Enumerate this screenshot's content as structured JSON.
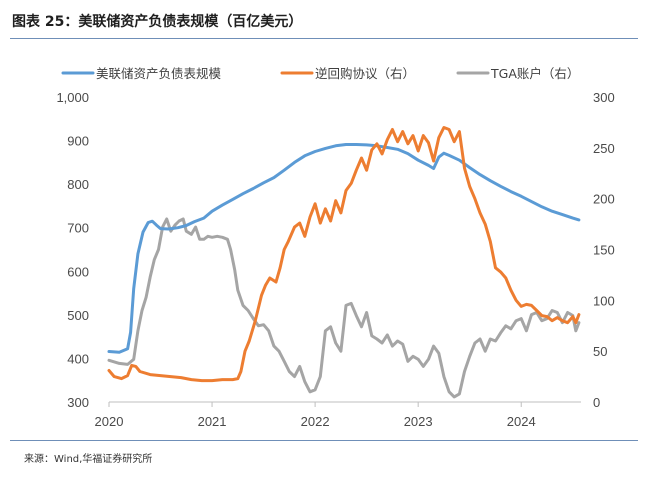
{
  "figure_title": "图表 25：美联储资产负债表规模（百亿美元）",
  "source": "来源：Wind,华福证券研究所",
  "colors": {
    "fed": "#5b9bd5",
    "rrp": "#ed7d31",
    "tga": "#a5a5a5",
    "axis": "#bfbfbf",
    "rule": "#6f8fb8"
  },
  "chart_data": {
    "type": "line",
    "title": "",
    "legend_position": "top",
    "grid": false,
    "x_axis": {
      "tick_labels": [
        "2020",
        "2021",
        "2022",
        "2023",
        "2024"
      ],
      "range": [
        2020.0,
        2024.58
      ]
    },
    "y_left": {
      "tick_labels": [
        "1,000",
        "900",
        "800",
        "700",
        "600",
        "500",
        "400",
        "300"
      ],
      "range": [
        300,
        1000
      ]
    },
    "y_right": {
      "tick_labels": [
        "300",
        "250",
        "200",
        "150",
        "100",
        "50",
        "0"
      ],
      "range": [
        0,
        300
      ]
    },
    "series": [
      {
        "name": "美联储资产负债表规模",
        "axis": "left",
        "points": [
          [
            2020.0,
            416
          ],
          [
            2020.1,
            414
          ],
          [
            2020.18,
            422
          ],
          [
            2020.21,
            460
          ],
          [
            2020.24,
            560
          ],
          [
            2020.28,
            640
          ],
          [
            2020.33,
            690
          ],
          [
            2020.38,
            712
          ],
          [
            2020.42,
            715
          ],
          [
            2020.46,
            706
          ],
          [
            2020.5,
            698
          ],
          [
            2020.58,
            697
          ],
          [
            2020.67,
            700
          ],
          [
            2020.75,
            705
          ],
          [
            2020.83,
            714
          ],
          [
            2020.92,
            722
          ],
          [
            2021.0,
            738
          ],
          [
            2021.1,
            752
          ],
          [
            2021.2,
            765
          ],
          [
            2021.3,
            778
          ],
          [
            2021.4,
            790
          ],
          [
            2021.5,
            803
          ],
          [
            2021.6,
            815
          ],
          [
            2021.7,
            832
          ],
          [
            2021.8,
            850
          ],
          [
            2021.9,
            865
          ],
          [
            2022.0,
            875
          ],
          [
            2022.1,
            882
          ],
          [
            2022.2,
            888
          ],
          [
            2022.3,
            891
          ],
          [
            2022.4,
            891
          ],
          [
            2022.5,
            890
          ],
          [
            2022.6,
            888
          ],
          [
            2022.7,
            884
          ],
          [
            2022.8,
            880
          ],
          [
            2022.9,
            870
          ],
          [
            2023.0,
            855
          ],
          [
            2023.1,
            843
          ],
          [
            2023.15,
            836
          ],
          [
            2023.2,
            862
          ],
          [
            2023.25,
            871
          ],
          [
            2023.3,
            866
          ],
          [
            2023.4,
            855
          ],
          [
            2023.5,
            838
          ],
          [
            2023.6,
            822
          ],
          [
            2023.7,
            808
          ],
          [
            2023.8,
            795
          ],
          [
            2023.9,
            783
          ],
          [
            2024.0,
            772
          ],
          [
            2024.1,
            760
          ],
          [
            2024.2,
            748
          ],
          [
            2024.3,
            738
          ],
          [
            2024.4,
            730
          ],
          [
            2024.5,
            722
          ],
          [
            2024.56,
            718
          ]
        ]
      },
      {
        "name": "逆回购协议（右）",
        "axis": "right",
        "points": [
          [
            2020.0,
            31
          ],
          [
            2020.05,
            25
          ],
          [
            2020.12,
            23
          ],
          [
            2020.18,
            26
          ],
          [
            2020.22,
            36
          ],
          [
            2020.26,
            35
          ],
          [
            2020.3,
            30
          ],
          [
            2020.4,
            27
          ],
          [
            2020.5,
            26
          ],
          [
            2020.6,
            25
          ],
          [
            2020.7,
            24
          ],
          [
            2020.8,
            22
          ],
          [
            2020.9,
            21
          ],
          [
            2021.0,
            21
          ],
          [
            2021.1,
            22
          ],
          [
            2021.2,
            22
          ],
          [
            2021.25,
            23
          ],
          [
            2021.28,
            30
          ],
          [
            2021.32,
            50
          ],
          [
            2021.36,
            60
          ],
          [
            2021.42,
            80
          ],
          [
            2021.48,
            105
          ],
          [
            2021.52,
            115
          ],
          [
            2021.56,
            122
          ],
          [
            2021.62,
            118
          ],
          [
            2021.66,
            132
          ],
          [
            2021.7,
            150
          ],
          [
            2021.74,
            158
          ],
          [
            2021.8,
            172
          ],
          [
            2021.85,
            176
          ],
          [
            2021.9,
            163
          ],
          [
            2021.95,
            182
          ],
          [
            2022.0,
            195
          ],
          [
            2022.05,
            176
          ],
          [
            2022.1,
            190
          ],
          [
            2022.15,
            178
          ],
          [
            2022.2,
            198
          ],
          [
            2022.25,
            186
          ],
          [
            2022.3,
            208
          ],
          [
            2022.35,
            215
          ],
          [
            2022.4,
            228
          ],
          [
            2022.45,
            240
          ],
          [
            2022.5,
            228
          ],
          [
            2022.55,
            248
          ],
          [
            2022.6,
            254
          ],
          [
            2022.65,
            244
          ],
          [
            2022.7,
            258
          ],
          [
            2022.75,
            268
          ],
          [
            2022.8,
            256
          ],
          [
            2022.85,
            266
          ],
          [
            2022.9,
            254
          ],
          [
            2022.95,
            262
          ],
          [
            2023.0,
            247
          ],
          [
            2023.05,
            262
          ],
          [
            2023.1,
            255
          ],
          [
            2023.15,
            237
          ],
          [
            2023.2,
            260
          ],
          [
            2023.25,
            270
          ],
          [
            2023.3,
            268
          ],
          [
            2023.35,
            256
          ],
          [
            2023.4,
            266
          ],
          [
            2023.45,
            230
          ],
          [
            2023.5,
            212
          ],
          [
            2023.55,
            200
          ],
          [
            2023.6,
            186
          ],
          [
            2023.65,
            175
          ],
          [
            2023.7,
            158
          ],
          [
            2023.75,
            132
          ],
          [
            2023.8,
            128
          ],
          [
            2023.85,
            122
          ],
          [
            2023.9,
            110
          ],
          [
            2023.95,
            100
          ],
          [
            2024.0,
            94
          ],
          [
            2024.05,
            96
          ],
          [
            2024.1,
            95
          ],
          [
            2024.15,
            90
          ],
          [
            2024.2,
            85
          ],
          [
            2024.25,
            84
          ],
          [
            2024.3,
            80
          ],
          [
            2024.35,
            83
          ],
          [
            2024.4,
            80
          ],
          [
            2024.45,
            78
          ],
          [
            2024.5,
            84
          ],
          [
            2024.53,
            78
          ],
          [
            2024.56,
            86
          ]
        ]
      },
      {
        "name": "TGA账户（右）",
        "axis": "right",
        "points": [
          [
            2020.0,
            41
          ],
          [
            2020.1,
            38
          ],
          [
            2020.18,
            37
          ],
          [
            2020.24,
            42
          ],
          [
            2020.28,
            70
          ],
          [
            2020.32,
            90
          ],
          [
            2020.36,
            103
          ],
          [
            2020.4,
            123
          ],
          [
            2020.44,
            140
          ],
          [
            2020.48,
            150
          ],
          [
            2020.52,
            172
          ],
          [
            2020.56,
            180
          ],
          [
            2020.6,
            168
          ],
          [
            2020.64,
            174
          ],
          [
            2020.68,
            178
          ],
          [
            2020.72,
            180
          ],
          [
            2020.75,
            168
          ],
          [
            2020.8,
            165
          ],
          [
            2020.84,
            172
          ],
          [
            2020.88,
            160
          ],
          [
            2020.92,
            160
          ],
          [
            2020.96,
            163
          ],
          [
            2021.0,
            162
          ],
          [
            2021.05,
            163
          ],
          [
            2021.1,
            162
          ],
          [
            2021.15,
            160
          ],
          [
            2021.18,
            150
          ],
          [
            2021.22,
            130
          ],
          [
            2021.25,
            110
          ],
          [
            2021.3,
            95
          ],
          [
            2021.35,
            90
          ],
          [
            2021.4,
            82
          ],
          [
            2021.45,
            75
          ],
          [
            2021.5,
            76
          ],
          [
            2021.55,
            70
          ],
          [
            2021.6,
            55
          ],
          [
            2021.65,
            50
          ],
          [
            2021.7,
            40
          ],
          [
            2021.75,
            30
          ],
          [
            2021.8,
            25
          ],
          [
            2021.85,
            35
          ],
          [
            2021.9,
            20
          ],
          [
            2021.95,
            10
          ],
          [
            2022.0,
            12
          ],
          [
            2022.05,
            25
          ],
          [
            2022.1,
            70
          ],
          [
            2022.15,
            74
          ],
          [
            2022.2,
            58
          ],
          [
            2022.25,
            50
          ],
          [
            2022.3,
            95
          ],
          [
            2022.35,
            97
          ],
          [
            2022.4,
            85
          ],
          [
            2022.45,
            74
          ],
          [
            2022.5,
            88
          ],
          [
            2022.55,
            65
          ],
          [
            2022.6,
            62
          ],
          [
            2022.65,
            58
          ],
          [
            2022.7,
            66
          ],
          [
            2022.75,
            55
          ],
          [
            2022.8,
            60
          ],
          [
            2022.85,
            57
          ],
          [
            2022.9,
            40
          ],
          [
            2022.95,
            45
          ],
          [
            2023.0,
            42
          ],
          [
            2023.05,
            35
          ],
          [
            2023.1,
            42
          ],
          [
            2023.15,
            55
          ],
          [
            2023.2,
            48
          ],
          [
            2023.25,
            25
          ],
          [
            2023.3,
            10
          ],
          [
            2023.35,
            5
          ],
          [
            2023.4,
            8
          ],
          [
            2023.45,
            30
          ],
          [
            2023.5,
            45
          ],
          [
            2023.55,
            58
          ],
          [
            2023.6,
            62
          ],
          [
            2023.65,
            50
          ],
          [
            2023.7,
            62
          ],
          [
            2023.75,
            60
          ],
          [
            2023.8,
            68
          ],
          [
            2023.85,
            75
          ],
          [
            2023.9,
            72
          ],
          [
            2023.95,
            80
          ],
          [
            2024.0,
            82
          ],
          [
            2024.05,
            70
          ],
          [
            2024.1,
            86
          ],
          [
            2024.15,
            88
          ],
          [
            2024.2,
            80
          ],
          [
            2024.25,
            82
          ],
          [
            2024.3,
            90
          ],
          [
            2024.35,
            88
          ],
          [
            2024.4,
            78
          ],
          [
            2024.45,
            88
          ],
          [
            2024.5,
            85
          ],
          [
            2024.53,
            70
          ],
          [
            2024.56,
            78
          ]
        ]
      }
    ]
  }
}
